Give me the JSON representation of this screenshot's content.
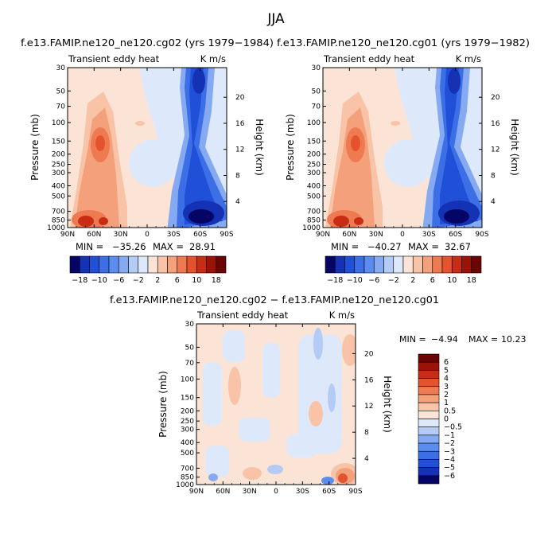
{
  "figure": {
    "season": "JJA",
    "variable_label": "Transient eddy heat",
    "units": "K m/s"
  },
  "chart_data": [
    {
      "type": "heatmap",
      "title": "f.e13.FAMIP.ne120_ne120.cg02 (yrs 1979−1984)",
      "left_label": "Transient eddy heat",
      "right_label": "K m/s",
      "xlabel": "",
      "ylabel": "Pressure (mb)",
      "y2label": "Height (km)",
      "xticks": [
        "90N",
        "60N",
        "30N",
        "0",
        "30S",
        "60S",
        "90S"
      ],
      "xlim": [
        90,
        -90
      ],
      "yticks": [
        "30",
        "50",
        "70",
        "100",
        "150",
        "200",
        "250",
        "300",
        "400",
        "500",
        "700",
        "850",
        "1000"
      ],
      "ylim": [
        30,
        1000
      ],
      "y2ticks": [
        "20",
        "16",
        "12",
        "8",
        "4"
      ],
      "stats": {
        "min_label": "MIN =",
        "min_value": "−35.26",
        "max_label": "MAX =",
        "max_value": "28.91"
      },
      "colorbar_ticks": [
        "−18",
        "−10",
        "−6",
        "−2",
        "2",
        "6",
        "10",
        "18"
      ]
    },
    {
      "type": "heatmap",
      "title": "f.e13.FAMIP.ne120_ne120.cg01 (yrs 1979−1982)",
      "left_label": "Transient eddy heat",
      "right_label": "K m/s",
      "xlabel": "",
      "ylabel": "Pressure (mb)",
      "y2label": "Height (km)",
      "xticks": [
        "90N",
        "60N",
        "30N",
        "0",
        "30S",
        "60S",
        "90S"
      ],
      "xlim": [
        90,
        -90
      ],
      "yticks": [
        "30",
        "50",
        "70",
        "100",
        "150",
        "200",
        "250",
        "300",
        "400",
        "500",
        "700",
        "850",
        "1000"
      ],
      "ylim": [
        30,
        1000
      ],
      "y2ticks": [
        "20",
        "16",
        "12",
        "8",
        "4"
      ],
      "stats": {
        "min_label": "MIN =",
        "min_value": "−40.27",
        "max_label": "MAX =",
        "max_value": "32.67"
      },
      "colorbar_ticks": [
        "−18",
        "−10",
        "−6",
        "−2",
        "2",
        "6",
        "10",
        "18"
      ]
    },
    {
      "type": "heatmap",
      "title": "f.e13.FAMIP.ne120_ne120.cg02 − f.e13.FAMIP.ne120_ne120.cg01",
      "left_label": "Transient eddy heat",
      "right_label": "K m/s",
      "xlabel": "",
      "ylabel": "Pressure (mb)",
      "y2label": "Height (km)",
      "xticks": [
        "90N",
        "60N",
        "30N",
        "0",
        "30S",
        "60S",
        "90S"
      ],
      "xlim": [
        90,
        -90
      ],
      "yticks": [
        "30",
        "50",
        "70",
        "100",
        "150",
        "200",
        "250",
        "300",
        "400",
        "500",
        "700",
        "850",
        "1000"
      ],
      "ylim": [
        30,
        1000
      ],
      "y2ticks": [
        "20",
        "16",
        "12",
        "8",
        "4"
      ],
      "stats": {
        "min_label": "MIN =",
        "min_value": "−4.94",
        "max_label": "MAX =",
        "max_value": "10.23"
      },
      "colorbar_ticks": [
        "6",
        "5",
        "4",
        "3",
        "2",
        "1",
        "0.5",
        "0",
        "−0.5",
        "−1",
        "−2",
        "−3",
        "−4",
        "−5",
        "−6"
      ]
    }
  ],
  "colors": {
    "palette": [
      "#050566",
      "#1432b3",
      "#2050d8",
      "#3c6fe6",
      "#5b8cf0",
      "#86aaf2",
      "#b3cbf5",
      "#dde9fa",
      "#fbe4d5",
      "#f8c3a6",
      "#f4a07b",
      "#ee7a52",
      "#e4532e",
      "#c82c14",
      "#9a1208",
      "#6b0404"
    ]
  }
}
